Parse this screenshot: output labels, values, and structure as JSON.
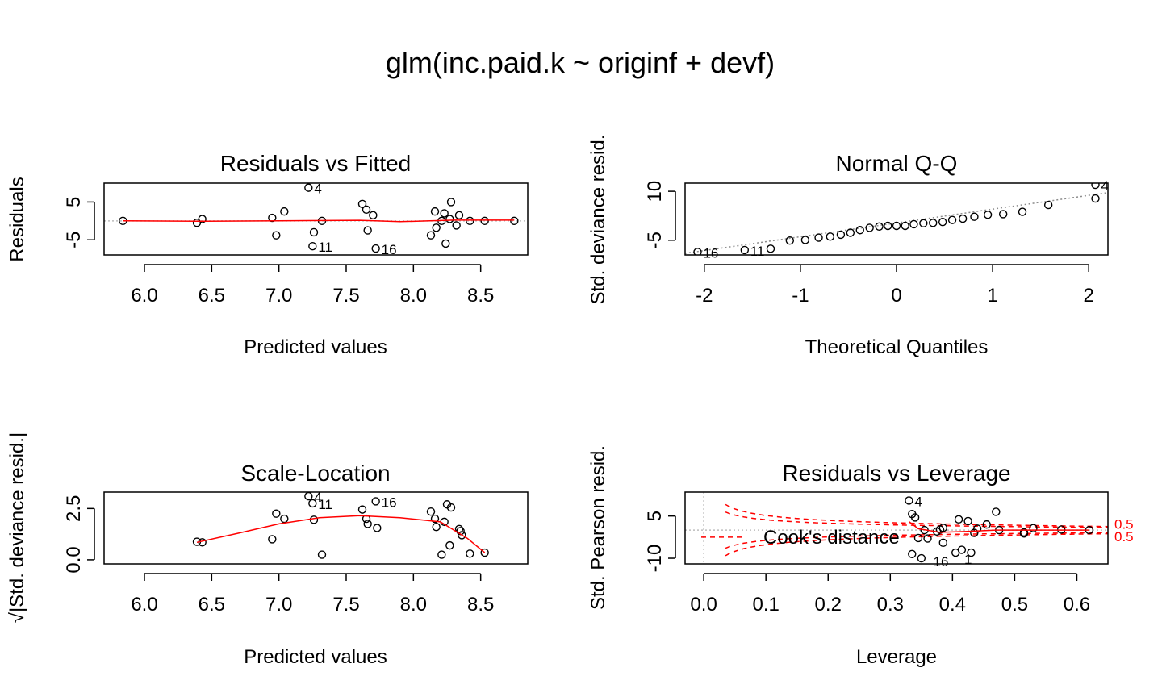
{
  "figure": {
    "title": "glm(inc.paid.k ~ originf + devf)"
  },
  "chart_data": [
    {
      "type": "scatter",
      "title": "Residuals vs Fitted",
      "xlabel": "Predicted values",
      "ylabel": "Residuals",
      "xlim": [
        5.7,
        8.85
      ],
      "ylim": [
        -9,
        10
      ],
      "xticks": [
        6.0,
        6.5,
        7.0,
        7.5,
        8.0,
        8.5
      ],
      "xtick_labels": [
        "6.0",
        "6.5",
        "7.0",
        "7.5",
        "8.0",
        "8.5"
      ],
      "yticks": [
        5,
        -5
      ],
      "ytick_labels": [
        "5",
        "-5"
      ],
      "points": [
        [
          5.84,
          0.0
        ],
        [
          6.39,
          -0.5
        ],
        [
          6.43,
          0.5
        ],
        [
          6.95,
          0.8
        ],
        [
          6.98,
          -3.8
        ],
        [
          7.04,
          2.5
        ],
        [
          7.22,
          8.8
        ],
        [
          7.25,
          -6.7
        ],
        [
          7.26,
          -3.0
        ],
        [
          7.32,
          0.0
        ],
        [
          7.62,
          4.5
        ],
        [
          7.65,
          3.0
        ],
        [
          7.66,
          -2.5
        ],
        [
          7.7,
          1.5
        ],
        [
          7.72,
          -7.3
        ],
        [
          8.13,
          -3.8
        ],
        [
          8.16,
          2.5
        ],
        [
          8.17,
          -1.8
        ],
        [
          8.21,
          0.0
        ],
        [
          8.23,
          2.0
        ],
        [
          8.24,
          -6.0
        ],
        [
          8.27,
          0.5
        ],
        [
          8.28,
          5.0
        ],
        [
          8.32,
          -1.2
        ],
        [
          8.34,
          1.5
        ],
        [
          8.42,
          0.0
        ],
        [
          8.53,
          0.0
        ],
        [
          8.75,
          0.0
        ]
      ],
      "point_labels": [
        {
          "text": "4",
          "x": 7.22,
          "y": 8.8
        },
        {
          "text": "11",
          "x": 7.25,
          "y": -6.7
        },
        {
          "text": "16",
          "x": 7.72,
          "y": -7.3
        }
      ],
      "smooth": [
        [
          5.84,
          0.0
        ],
        [
          6.4,
          -0.1
        ],
        [
          7.0,
          0.0
        ],
        [
          7.6,
          0.15
        ],
        [
          7.9,
          -0.2
        ],
        [
          8.3,
          0.2
        ],
        [
          8.75,
          0.2
        ]
      ],
      "reference_line": {
        "y": 0
      }
    },
    {
      "type": "scatter",
      "title": "Normal Q-Q",
      "xlabel": "Theoretical Quantiles",
      "ylabel": "Std. deviance resid.",
      "xlim": [
        -2.2,
        2.2
      ],
      "ylim": [
        -9.5,
        12.5
      ],
      "xticks": [
        -2,
        -1,
        0,
        1,
        2
      ],
      "xtick_labels": [
        "-2",
        "-1",
        "0",
        "1",
        "2"
      ],
      "yticks": [
        10,
        -5
      ],
      "ytick_labels": [
        "10",
        "-5"
      ],
      "points": [
        [
          -2.07,
          -8.6
        ],
        [
          -1.58,
          -8.0
        ],
        [
          -1.31,
          -7.6
        ],
        [
          -1.11,
          -5.1
        ],
        [
          -0.95,
          -4.9
        ],
        [
          -0.81,
          -4.2
        ],
        [
          -0.69,
          -3.9
        ],
        [
          -0.58,
          -3.3
        ],
        [
          -0.48,
          -2.7
        ],
        [
          -0.38,
          -1.9
        ],
        [
          -0.28,
          -1.2
        ],
        [
          -0.18,
          -0.8
        ],
        [
          -0.09,
          -0.6
        ],
        [
          0.0,
          -0.6
        ],
        [
          0.09,
          -0.6
        ],
        [
          0.18,
          -0.1
        ],
        [
          0.28,
          0.2
        ],
        [
          0.38,
          0.3
        ],
        [
          0.48,
          0.6
        ],
        [
          0.58,
          1.2
        ],
        [
          0.69,
          1.6
        ],
        [
          0.81,
          2.2
        ],
        [
          0.95,
          2.8
        ],
        [
          1.11,
          3.0
        ],
        [
          1.31,
          3.7
        ],
        [
          1.58,
          5.8
        ],
        [
          2.07,
          7.8
        ],
        [
          2.07,
          12.0
        ]
      ],
      "point_labels": [
        {
          "text": "4",
          "x": 2.07,
          "y": 12.0
        },
        {
          "text": "16",
          "x": -2.07,
          "y": -8.6
        },
        {
          "text": "11",
          "x": -1.58,
          "y": -8.0
        }
      ],
      "qq_line": [
        [
          -2.2,
          -9.0
        ],
        [
          2.2,
          9.6
        ]
      ]
    },
    {
      "type": "scatter",
      "title": "Scale-Location",
      "xlabel": "Predicted values",
      "ylabel": "√|Std. deviance resid.|",
      "xlim": [
        5.7,
        8.85
      ],
      "ylim": [
        -0.2,
        3.3
      ],
      "xticks": [
        6.0,
        6.5,
        7.0,
        7.5,
        8.0,
        8.5
      ],
      "xtick_labels": [
        "6.0",
        "6.5",
        "7.0",
        "7.5",
        "8.0",
        "8.5"
      ],
      "yticks": [
        2.5,
        0.0
      ],
      "ytick_labels": [
        "2.5",
        "0.0"
      ],
      "points": [
        [
          6.39,
          0.88
        ],
        [
          6.43,
          0.85
        ],
        [
          6.95,
          1.0
        ],
        [
          6.98,
          2.25
        ],
        [
          7.04,
          2.0
        ],
        [
          7.22,
          3.1
        ],
        [
          7.25,
          2.75
        ],
        [
          7.26,
          1.95
        ],
        [
          7.32,
          0.25
        ],
        [
          7.62,
          2.45
        ],
        [
          7.65,
          2.0
        ],
        [
          7.66,
          1.75
        ],
        [
          7.72,
          2.85
        ],
        [
          7.73,
          1.55
        ],
        [
          8.13,
          2.35
        ],
        [
          8.16,
          2.0
        ],
        [
          8.17,
          1.6
        ],
        [
          8.21,
          0.25
        ],
        [
          8.23,
          1.85
        ],
        [
          8.25,
          2.7
        ],
        [
          8.27,
          0.7
        ],
        [
          8.28,
          2.55
        ],
        [
          8.34,
          1.5
        ],
        [
          8.35,
          1.4
        ],
        [
          8.36,
          1.2
        ],
        [
          8.42,
          0.3
        ],
        [
          8.53,
          0.35
        ]
      ],
      "point_labels": [
        {
          "text": "4",
          "x": 7.22,
          "y": 3.1
        },
        {
          "text": "11",
          "x": 7.25,
          "y": 2.75
        },
        {
          "text": "16",
          "x": 7.72,
          "y": 2.85
        }
      ],
      "smooth": [
        [
          6.39,
          0.85
        ],
        [
          6.7,
          1.3
        ],
        [
          7.0,
          1.75
        ],
        [
          7.3,
          2.05
        ],
        [
          7.6,
          2.15
        ],
        [
          7.9,
          2.05
        ],
        [
          8.2,
          1.85
        ],
        [
          8.4,
          1.05
        ],
        [
          8.53,
          0.35
        ]
      ]
    },
    {
      "type": "scatter",
      "title": "Residuals vs Leverage",
      "xlabel": "Leverage",
      "ylabel": "Std. Pearson resid.",
      "xlim": [
        -0.03,
        0.65
      ],
      "ylim": [
        -12,
        13.5
      ],
      "xticks": [
        0.0,
        0.1,
        0.2,
        0.3,
        0.4,
        0.5,
        0.6
      ],
      "xtick_labels": [
        "0.0",
        "0.1",
        "0.2",
        "0.3",
        "0.4",
        "0.5",
        "0.6"
      ],
      "yticks": [
        5,
        -10
      ],
      "ytick_labels": [
        "5",
        "-10"
      ],
      "points": [
        [
          0.33,
          10.5
        ],
        [
          0.335,
          5.7
        ],
        [
          0.34,
          4.5
        ],
        [
          0.345,
          -2.8
        ],
        [
          0.355,
          0.0
        ],
        [
          0.36,
          -3.0
        ],
        [
          0.375,
          -0.5
        ],
        [
          0.38,
          0.2
        ],
        [
          0.385,
          0.8
        ],
        [
          0.385,
          -4.5
        ],
        [
          0.41,
          3.8
        ],
        [
          0.415,
          -7.0
        ],
        [
          0.425,
          3.2
        ],
        [
          0.435,
          -1.0
        ],
        [
          0.44,
          0.5
        ],
        [
          0.455,
          2.0
        ],
        [
          0.47,
          6.5
        ],
        [
          0.475,
          0.0
        ],
        [
          0.515,
          -0.8
        ],
        [
          0.515,
          -1.2
        ],
        [
          0.53,
          0.7
        ],
        [
          0.575,
          0.2
        ],
        [
          0.62,
          0.0
        ],
        [
          0.335,
          -8.5
        ],
        [
          0.35,
          -10.0
        ],
        [
          0.405,
          -8.0
        ],
        [
          0.43,
          -8.0
        ]
      ],
      "point_labels": [
        {
          "text": "4",
          "x": 0.33,
          "y": 10.5
        },
        {
          "text": "16",
          "x": 0.36,
          "y": -10.8
        },
        {
          "text": "1",
          "x": 0.41,
          "y": -10.0
        }
      ],
      "smooth": [
        [
          0.33,
          3.0
        ],
        [
          0.345,
          0.5
        ],
        [
          0.38,
          -0.8
        ],
        [
          0.42,
          -0.5
        ],
        [
          0.47,
          0.0
        ],
        [
          0.62,
          0.0
        ]
      ],
      "legend": {
        "text": "Cook's distance",
        "position": "bottom-left"
      },
      "cook_labels": [
        "0.5",
        "0.5"
      ]
    }
  ]
}
